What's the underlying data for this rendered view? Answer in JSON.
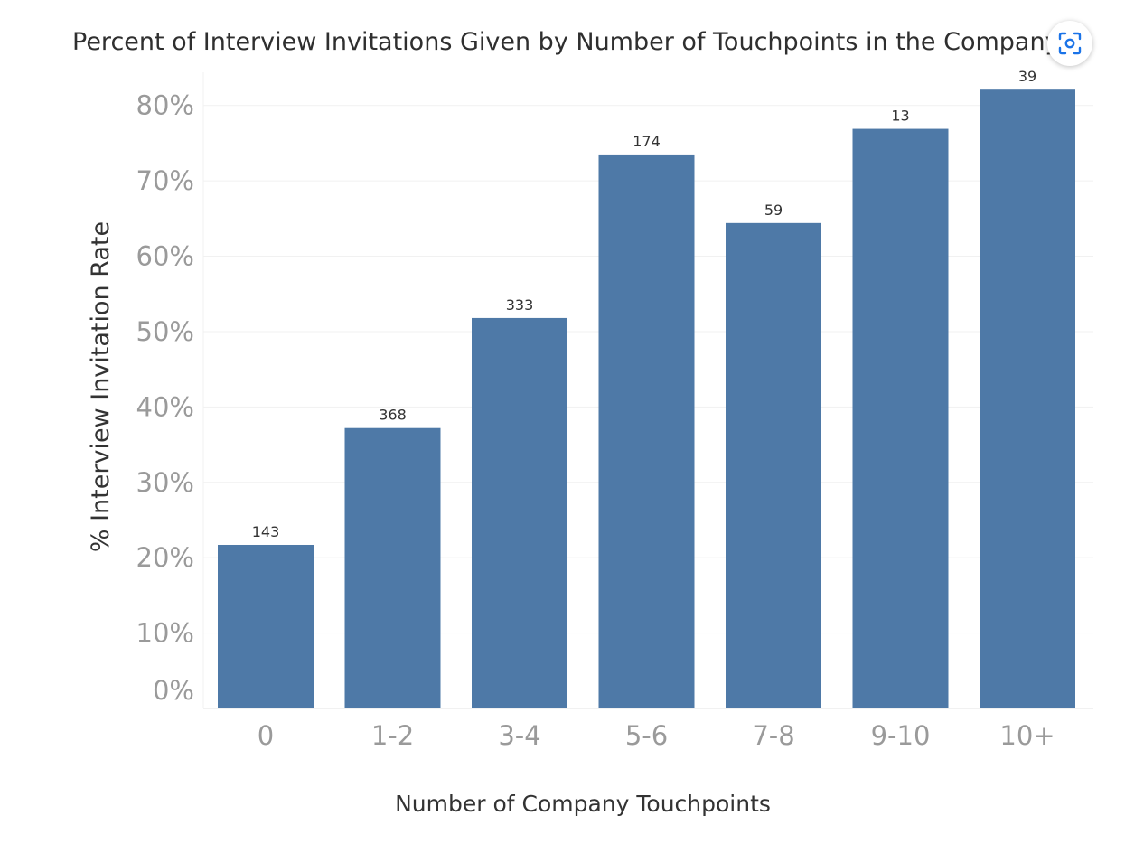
{
  "chart_data": {
    "type": "bar",
    "title": "Percent of Interview Invitations Given by Number of Touchpoints in the Company",
    "xlabel": "Number of Company Touchpoints",
    "ylabel": "% Interview Invitation Rate",
    "categories": [
      "0",
      "1-2",
      "3-4",
      "5-6",
      "7-8",
      "9-10",
      "10+"
    ],
    "values": [
      21.7,
      37.2,
      51.8,
      73.5,
      64.4,
      76.9,
      82.1
    ],
    "data_labels": [
      "143",
      "368",
      "333",
      "174",
      "59",
      "13",
      "39"
    ],
    "ylim": [
      0,
      85
    ],
    "y_ticks": [
      0,
      10,
      20,
      30,
      40,
      50,
      60,
      70,
      80
    ],
    "y_tick_labels": [
      "0%",
      "10%",
      "20%",
      "30%",
      "40%",
      "50%",
      "60%",
      "70%",
      "80%"
    ],
    "grid": true,
    "legend": "none",
    "bar_color": "#4e79a7"
  },
  "overlay": {
    "lens_icon": "visual-search-lens-icon",
    "lens_color": "#1a73e8"
  }
}
